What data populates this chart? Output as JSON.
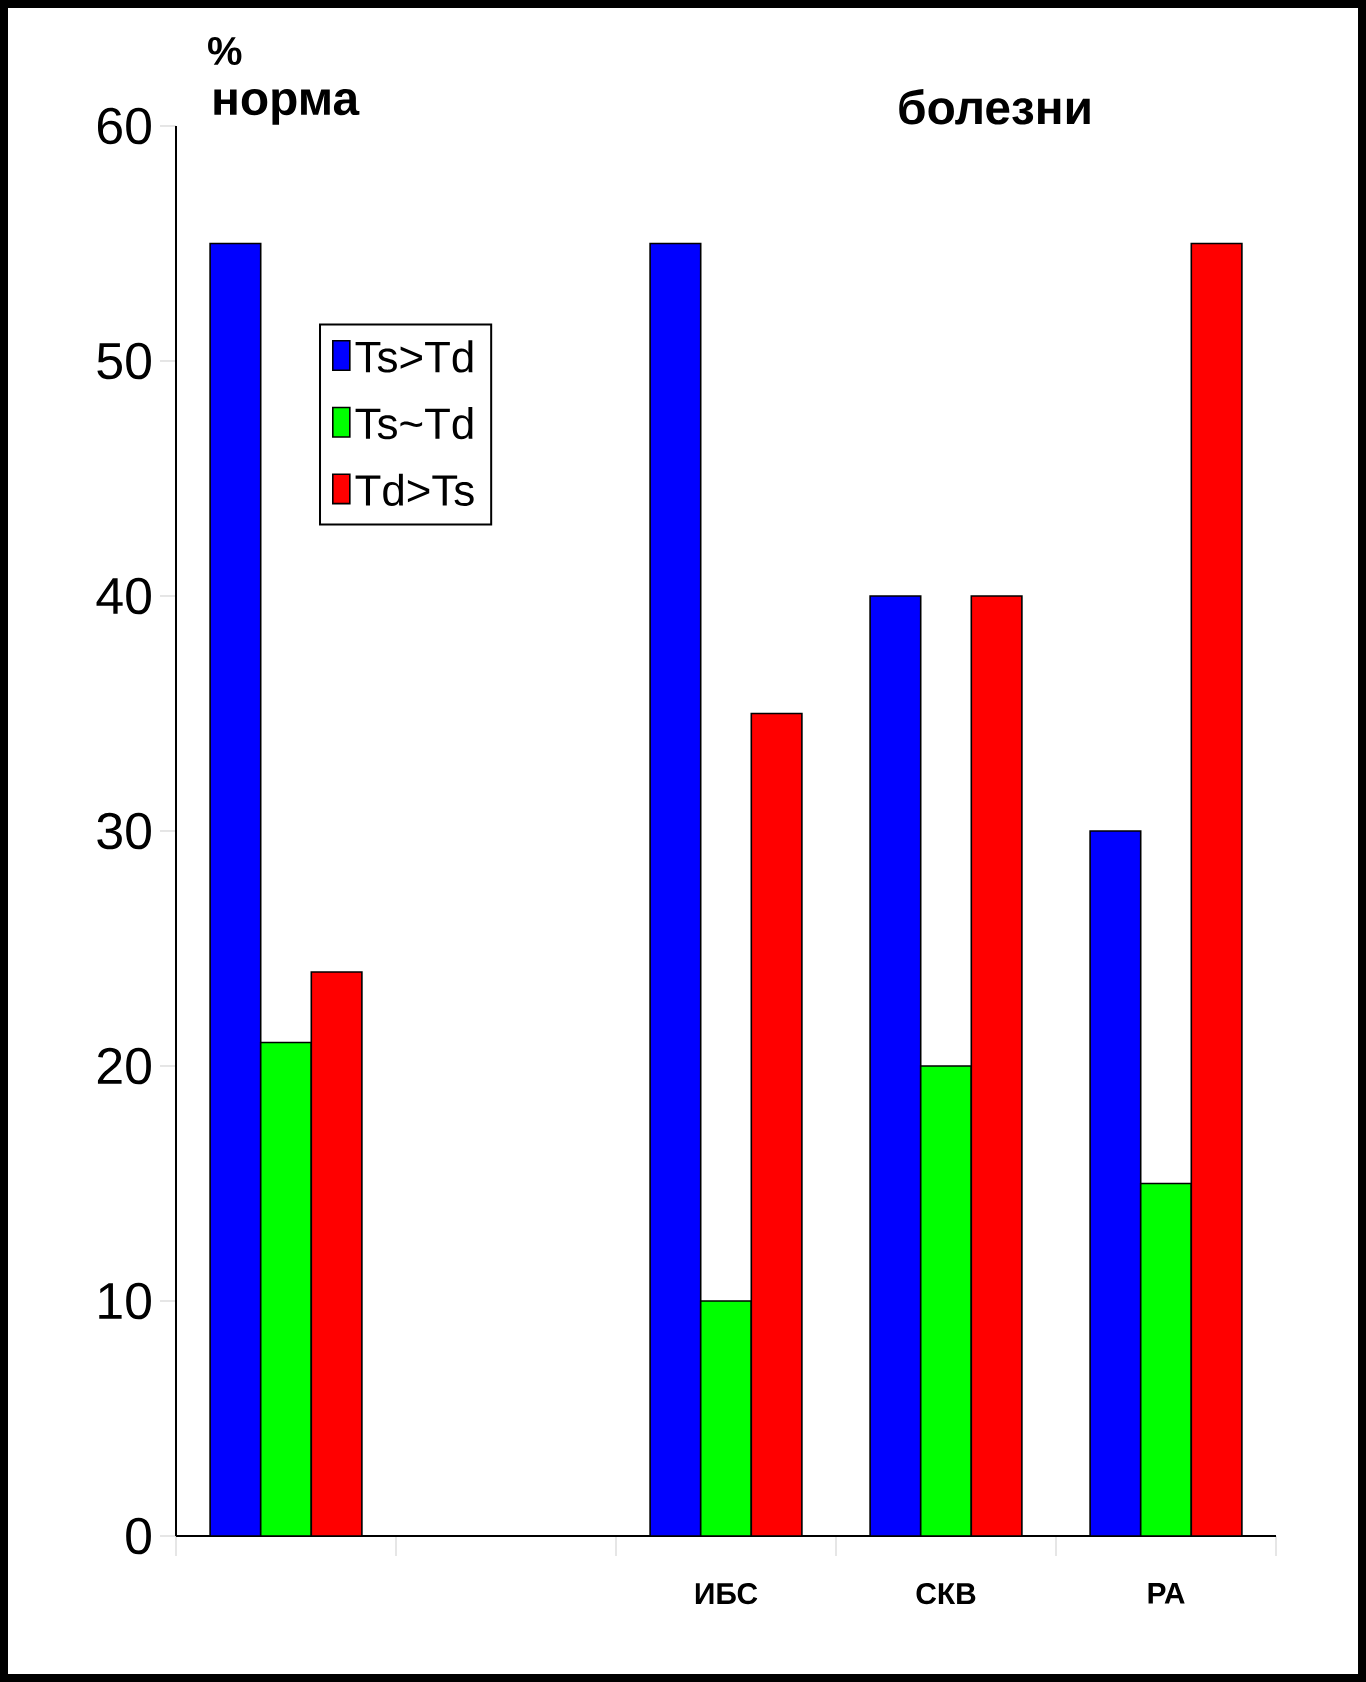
{
  "chart_data": {
    "type": "bar",
    "ylabel": "%",
    "annotations": [
      "норма",
      "болезни"
    ],
    "categories": [
      null,
      null,
      "ИБС",
      "СКВ",
      "РА"
    ],
    "series": [
      {
        "name": "Ts>Td",
        "color": "#0000ff",
        "values": [
          55,
          null,
          55,
          40,
          30
        ]
      },
      {
        "name": "Ts~Td",
        "color": "#00ff00",
        "values": [
          21,
          null,
          10,
          20,
          15
        ]
      },
      {
        "name": "Td>Ts",
        "color": "#ff0000",
        "values": [
          24,
          null,
          35,
          40,
          55
        ]
      }
    ],
    "ylim": [
      0,
      60
    ],
    "yticks": [
      0,
      10,
      20,
      30,
      40,
      50,
      60
    ],
    "legend": "top left"
  }
}
